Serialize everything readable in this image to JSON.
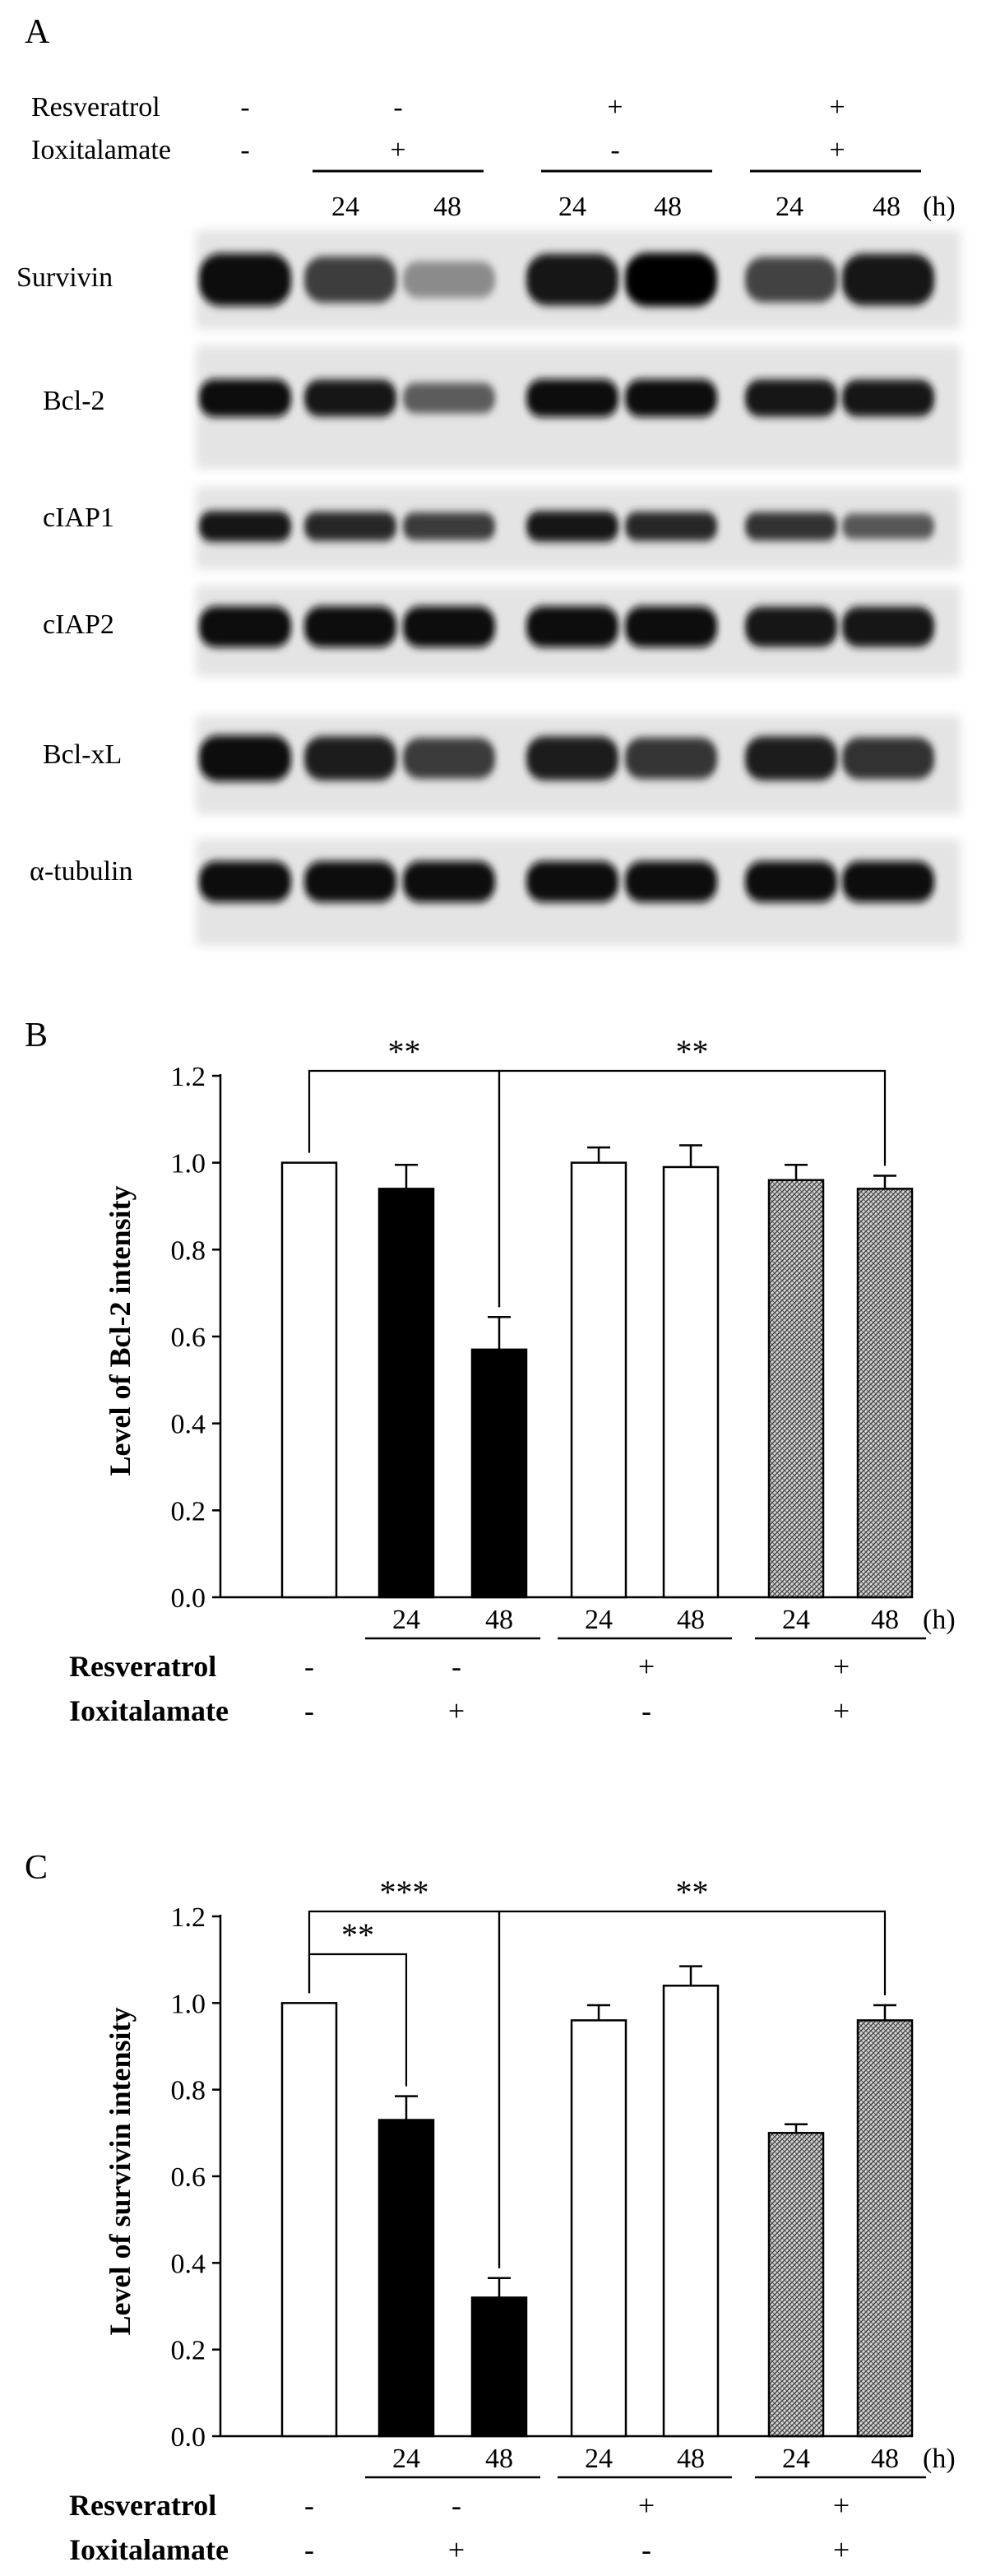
{
  "panel_a": {
    "panel_label": "A",
    "treatment_rows": [
      {
        "label": "Resveratrol",
        "signs": [
          "-",
          "-",
          "+",
          "+"
        ]
      },
      {
        "label": "Ioxitalamate",
        "signs": [
          "-",
          "+",
          "-",
          "+"
        ]
      }
    ],
    "times": [
      "24",
      "48",
      "24",
      "48",
      "24",
      "48"
    ],
    "time_unit": "(h)",
    "blots": [
      {
        "label": "Survivin",
        "intensities": [
          1.0,
          0.73,
          0.32,
          0.96,
          1.04,
          0.7,
          0.96
        ]
      },
      {
        "label": "Bcl-2",
        "intensities": [
          1.0,
          0.94,
          0.57,
          1.0,
          0.99,
          0.96,
          0.94
        ]
      },
      {
        "label": "cIAP1",
        "intensities": [
          0.95,
          0.85,
          0.75,
          0.95,
          0.85,
          0.8,
          0.6
        ]
      },
      {
        "label": "cIAP2",
        "intensities": [
          1.0,
          1.0,
          1.0,
          1.0,
          1.0,
          0.95,
          0.95
        ]
      },
      {
        "label": "Bcl-xL",
        "intensities": [
          1.0,
          0.9,
          0.75,
          0.9,
          0.78,
          0.9,
          0.8
        ]
      },
      {
        "label": "α-tubulin",
        "intensities": [
          1.0,
          1.0,
          1.0,
          1.0,
          1.0,
          1.0,
          1.0
        ]
      }
    ]
  },
  "chart_data": [
    {
      "type": "bar",
      "panel_label": "B",
      "ylabel": "Level of Bcl-2 intensity",
      "ylim": [
        0,
        1.2
      ],
      "yticks": [
        "0.0",
        "0.2",
        "0.4",
        "0.6",
        "0.8",
        "1.0",
        "1.2"
      ],
      "values": [
        1.0,
        0.94,
        0.57,
        1.0,
        0.99,
        0.96,
        0.94
      ],
      "errors": [
        0.0,
        0.055,
        0.075,
        0.035,
        0.05,
        0.035,
        0.03
      ],
      "bar_styles": [
        "white",
        "black",
        "black",
        "white",
        "white",
        "hatch",
        "hatch"
      ],
      "time_labels": [
        "24",
        "48",
        "24",
        "48",
        "24",
        "48"
      ],
      "time_unit": "(h)",
      "rows": [
        {
          "label": "Resveratrol",
          "signs": [
            "-",
            "-",
            "+",
            "+"
          ]
        },
        {
          "label": "Ioxitalamate",
          "signs": [
            "-",
            "+",
            "-",
            "+"
          ]
        }
      ],
      "significance": [
        {
          "from": 0,
          "to": 2,
          "label": "**"
        },
        {
          "from": 2,
          "to": 6,
          "label": "**"
        }
      ],
      "grid": false
    },
    {
      "type": "bar",
      "panel_label": "C",
      "ylabel": "Level of survivin intensity",
      "ylim": [
        0,
        1.2
      ],
      "yticks": [
        "0.0",
        "0.2",
        "0.4",
        "0.6",
        "0.8",
        "1.0",
        "1.2"
      ],
      "values": [
        1.0,
        0.73,
        0.32,
        0.96,
        1.04,
        0.7,
        0.96
      ],
      "errors": [
        0.0,
        0.055,
        0.045,
        0.035,
        0.045,
        0.02,
        0.035
      ],
      "bar_styles": [
        "white",
        "black",
        "black",
        "white",
        "white",
        "hatch",
        "hatch"
      ],
      "time_labels": [
        "24",
        "48",
        "24",
        "48",
        "24",
        "48"
      ],
      "time_unit": "(h)",
      "rows": [
        {
          "label": "Resveratrol",
          "signs": [
            "-",
            "-",
            "+",
            "+"
          ]
        },
        {
          "label": "Ioxitalamate",
          "signs": [
            "-",
            "+",
            "-",
            "+"
          ]
        }
      ],
      "significance": [
        {
          "from": 0,
          "to": 1,
          "label": "**"
        },
        {
          "from": 0,
          "to": 2,
          "label": "***"
        },
        {
          "from": 2,
          "to": 6,
          "label": "**"
        }
      ],
      "grid": false
    }
  ]
}
